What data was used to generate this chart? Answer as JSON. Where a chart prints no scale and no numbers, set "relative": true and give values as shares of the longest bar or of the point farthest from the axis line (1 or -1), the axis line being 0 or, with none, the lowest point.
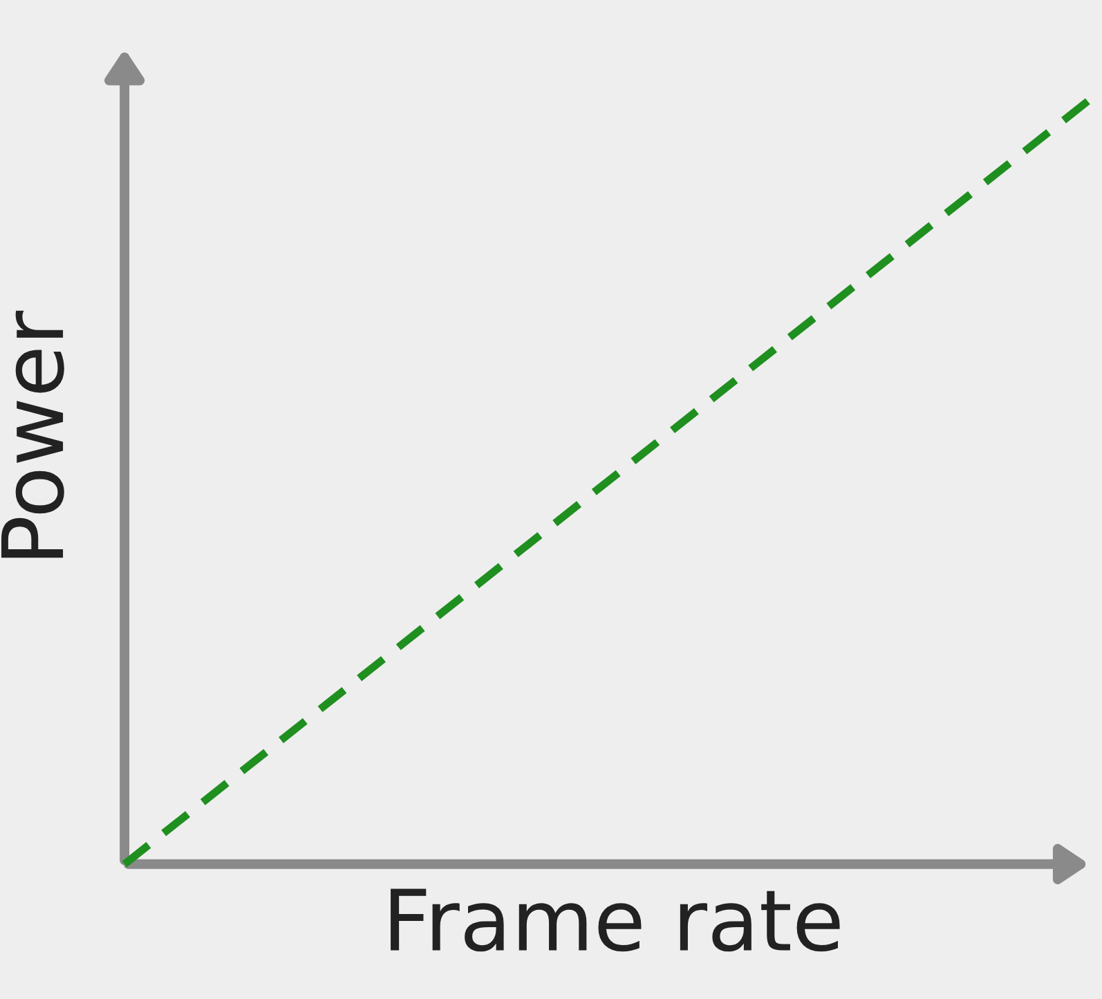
{
  "chart_data": {
    "type": "line",
    "xlabel": "Frame rate",
    "ylabel": "Power",
    "relative": true,
    "categories": [
      null,
      null
    ],
    "series": [
      {
        "color": "#1f8f1f",
        "values": [
          0,
          1
        ]
      }
    ],
    "line_style": "dashed",
    "grid": false
  }
}
